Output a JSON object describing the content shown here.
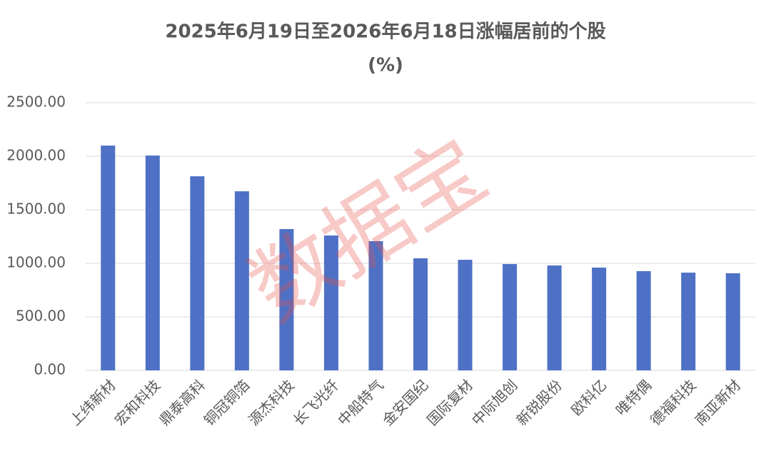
{
  "chart_data": {
    "type": "bar",
    "title": "2025年6月19日至2026年6月18日涨幅居前的个股",
    "subtitle": "(%)",
    "watermark": "数据宝",
    "categories": [
      "上纬新材",
      "宏和科技",
      "鼎泰高科",
      "铜冠铜箔",
      "源杰科技",
      "长飞光纤",
      "中船特气",
      "金安国纪",
      "国际复材",
      "中际旭创",
      "新锐股份",
      "欧科亿",
      "唯特偶",
      "德福科技",
      "南亚新材"
    ],
    "values": [
      2100,
      2007,
      1813,
      1673,
      1320,
      1260,
      1207,
      1047,
      1033,
      993,
      980,
      960,
      927,
      913,
      907
    ],
    "color": "#4e71c6",
    "ylim": [
      0,
      2500
    ],
    "yticks": [
      {
        "value": 0,
        "label": "0.00"
      },
      {
        "value": 500,
        "label": "500.00"
      },
      {
        "value": 1000,
        "label": "1000.00"
      },
      {
        "value": 1500,
        "label": "1500.00"
      },
      {
        "value": 2000,
        "label": "2000.00"
      },
      {
        "value": 2500,
        "label": "2500.00"
      }
    ],
    "grid": true
  }
}
